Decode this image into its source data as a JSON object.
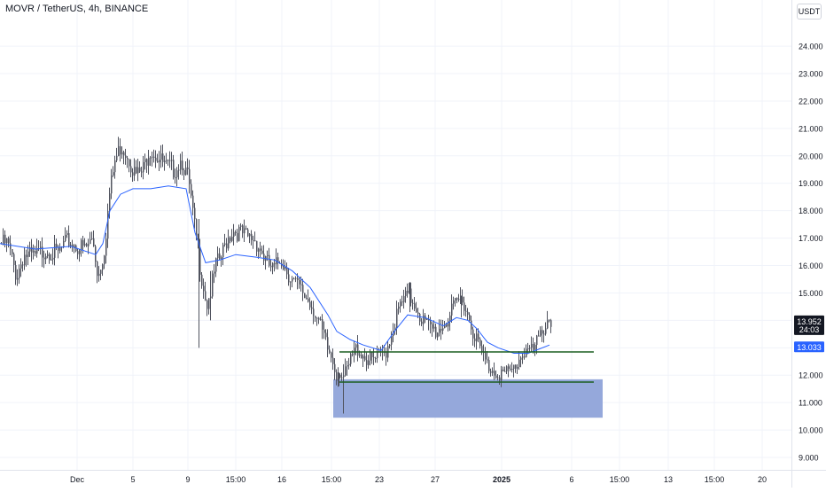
{
  "header": {
    "symbol_title": "MOVR / TetherUS, 4h, BINANCE",
    "currency": "USDT"
  },
  "chart_data": {
    "type": "candlestick",
    "symbol": "MOVR / TetherUS",
    "interval": "4h",
    "exchange": "BINANCE",
    "ylim": [
      8.3,
      24.5
    ],
    "y_ticks": [
      "9.000",
      "10.000",
      "11.000",
      "12.000",
      "13.000",
      "14.000",
      "15.000",
      "16.000",
      "17.000",
      "18.000",
      "19.000",
      "20.000",
      "21.000",
      "22.000",
      "23.000",
      "24.000"
    ],
    "x_ticks": [
      "Dec",
      "5",
      "9",
      "15:00",
      "16",
      "15:00",
      "23",
      "27",
      "2025",
      "6",
      "15:00",
      "13",
      "15:00",
      "20"
    ],
    "price_path": [
      [
        0,
        16.8
      ],
      [
        8,
        16.8
      ],
      [
        18,
        15.6
      ],
      [
        26,
        16.4
      ],
      [
        38,
        16.3
      ],
      [
        52,
        16.6
      ],
      [
        64,
        16.4
      ],
      [
        76,
        16.9
      ],
      [
        86,
        16.7
      ],
      [
        96,
        16.6
      ],
      [
        104,
        17.0
      ],
      [
        110,
        15.6
      ],
      [
        117,
        16.6
      ],
      [
        123,
        18.6
      ],
      [
        129,
        19.8
      ],
      [
        136,
        20.4
      ],
      [
        144,
        20.0
      ],
      [
        152,
        19.3
      ],
      [
        160,
        19.4
      ],
      [
        168,
        20.3
      ],
      [
        176,
        20.0
      ],
      [
        186,
        19.6
      ],
      [
        196,
        19.5
      ],
      [
        204,
        19.9
      ],
      [
        212,
        19.1
      ],
      [
        218,
        17.6
      ],
      [
        223,
        16.4
      ],
      [
        228,
        15.4
      ],
      [
        233,
        14.6
      ],
      [
        238,
        15.2
      ],
      [
        243,
        16.0
      ],
      [
        249,
        16.3
      ],
      [
        256,
        17.0
      ],
      [
        262,
        17.3
      ],
      [
        270,
        17.2
      ],
      [
        278,
        17.0
      ],
      [
        286,
        17.0
      ],
      [
        293,
        16.6
      ],
      [
        300,
        16.1
      ],
      [
        308,
        15.8
      ],
      [
        316,
        16.3
      ],
      [
        322,
        15.9
      ],
      [
        330,
        15.4
      ],
      [
        338,
        15.1
      ],
      [
        346,
        14.8
      ],
      [
        354,
        14.4
      ],
      [
        362,
        13.6
      ],
      [
        368,
        13.0
      ],
      [
        374,
        12.6
      ],
      [
        379,
        12.1
      ],
      [
        383,
        12.2
      ],
      [
        388,
        11.9
      ],
      [
        393,
        12.3
      ],
      [
        398,
        12.8
      ],
      [
        403,
        13.0
      ],
      [
        410,
        12.7
      ],
      [
        418,
        12.5
      ],
      [
        428,
        12.6
      ],
      [
        436,
        13.0
      ],
      [
        444,
        13.9
      ],
      [
        452,
        14.6
      ],
      [
        460,
        14.9
      ],
      [
        468,
        14.6
      ],
      [
        476,
        14.0
      ],
      [
        484,
        13.7
      ],
      [
        492,
        13.6
      ],
      [
        500,
        13.9
      ],
      [
        508,
        14.2
      ],
      [
        516,
        14.7
      ],
      [
        522,
        14.8
      ],
      [
        528,
        14.1
      ],
      [
        534,
        13.6
      ],
      [
        540,
        13.0
      ],
      [
        548,
        12.4
      ],
      [
        556,
        12.2
      ],
      [
        564,
        12.1
      ],
      [
        570,
        12.0
      ],
      [
        576,
        12.1
      ],
      [
        582,
        12.4
      ],
      [
        588,
        12.8
      ],
      [
        594,
        13.0
      ],
      [
        600,
        12.8
      ],
      [
        606,
        13.2
      ],
      [
        612,
        13.7
      ],
      [
        617,
        14.1
      ],
      [
        621,
        13.952
      ]
    ],
    "moving_average": [
      [
        0,
        16.8
      ],
      [
        40,
        16.6
      ],
      [
        80,
        16.7
      ],
      [
        108,
        16.4
      ],
      [
        116,
        16.8
      ],
      [
        124,
        18.0
      ],
      [
        136,
        18.6
      ],
      [
        150,
        18.8
      ],
      [
        170,
        18.8
      ],
      [
        190,
        18.9
      ],
      [
        210,
        18.8
      ],
      [
        220,
        17.2
      ],
      [
        232,
        16.1
      ],
      [
        248,
        16.2
      ],
      [
        266,
        16.4
      ],
      [
        290,
        16.3
      ],
      [
        310,
        16.2
      ],
      [
        330,
        15.8
      ],
      [
        350,
        15.2
      ],
      [
        370,
        14.2
      ],
      [
        380,
        13.6
      ],
      [
        395,
        13.3
      ],
      [
        410,
        13.1
      ],
      [
        430,
        12.9
      ],
      [
        445,
        13.6
      ],
      [
        460,
        14.2
      ],
      [
        480,
        14.1
      ],
      [
        500,
        13.8
      ],
      [
        515,
        14.1
      ],
      [
        528,
        14.0
      ],
      [
        538,
        13.7
      ],
      [
        550,
        13.2
      ],
      [
        562,
        13.0
      ],
      [
        580,
        12.8
      ],
      [
        596,
        12.8
      ],
      [
        608,
        12.95
      ],
      [
        620,
        13.1
      ]
    ],
    "levels": [
      {
        "name": "resistance",
        "price": 12.85,
        "x_start": 383,
        "x_end": 670,
        "color": "#1b5e20"
      },
      {
        "name": "support",
        "price": 11.75,
        "x_start": 383,
        "x_end": 670,
        "color": "#1b5e20"
      }
    ],
    "zone": {
      "price_top": 11.85,
      "price_bottom": 10.45,
      "x_start": 376,
      "x_end": 680,
      "color": "#8fa3d9"
    },
    "last_price": {
      "value": "13.952",
      "countdown": "24:03"
    },
    "ma_value": "13.033",
    "colors": {
      "candle": "#50535e",
      "ma_line": "#2962ff",
      "last_price_bg": "#131722",
      "ma_label_bg": "#2962ff",
      "axis_text": "#131722",
      "grid": "#f0f3fa"
    }
  }
}
